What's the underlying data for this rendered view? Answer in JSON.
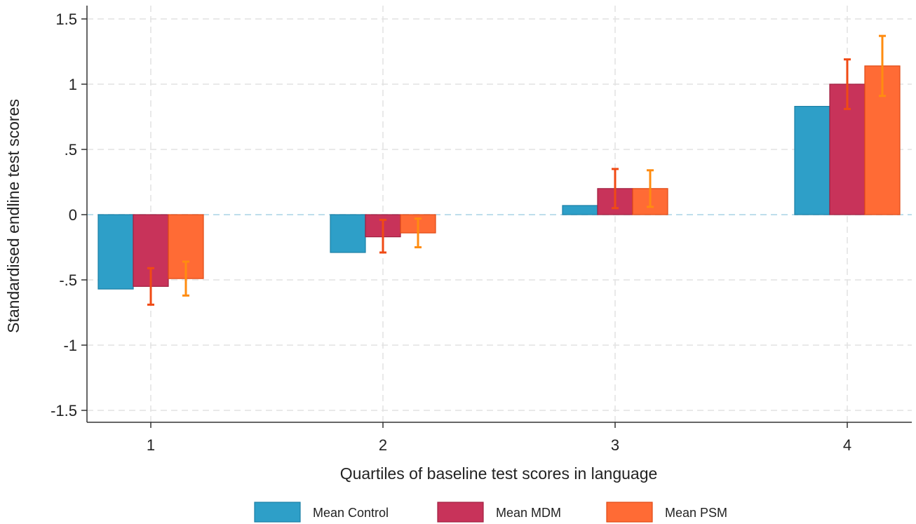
{
  "chart_data": {
    "type": "bar",
    "title": "",
    "xlabel": "Quartiles of baseline test scores in language",
    "ylabel": "Standardised endline test scores",
    "categories": [
      "1",
      "2",
      "3",
      "4"
    ],
    "ylim": [
      -1.6,
      1.6
    ],
    "yticks": [
      1.5,
      1,
      0.5,
      0,
      -0.5,
      -1,
      -1.5
    ],
    "ytick_labels": [
      "1.5",
      "1",
      ".5",
      "0",
      "-.5",
      "-1",
      "-1.5"
    ],
    "grid": true,
    "legend_position": "bottom",
    "series": [
      {
        "name": "Mean Control",
        "color": "#2e9fc8",
        "edge": "#1a7fa5",
        "values": [
          -0.57,
          -0.29,
          0.07,
          0.83
        ],
        "ci": null
      },
      {
        "name": "Mean MDM",
        "color": "#c8335a",
        "edge": "#a02040",
        "errcolor": "#f04a14",
        "values": [
          -0.55,
          -0.17,
          0.2,
          1.0
        ],
        "ci": [
          [
            -0.69,
            -0.41
          ],
          [
            -0.29,
            -0.04
          ],
          [
            0.05,
            0.35
          ],
          [
            0.81,
            1.19
          ]
        ]
      },
      {
        "name": "Mean PSM",
        "color": "#ff6b35",
        "edge": "#e04a15",
        "errcolor": "#ff8c10",
        "values": [
          -0.49,
          -0.14,
          0.2,
          1.14
        ],
        "ci": [
          [
            -0.62,
            -0.36
          ],
          [
            -0.25,
            -0.03
          ],
          [
            0.06,
            0.34
          ],
          [
            0.91,
            1.37
          ]
        ]
      }
    ]
  }
}
